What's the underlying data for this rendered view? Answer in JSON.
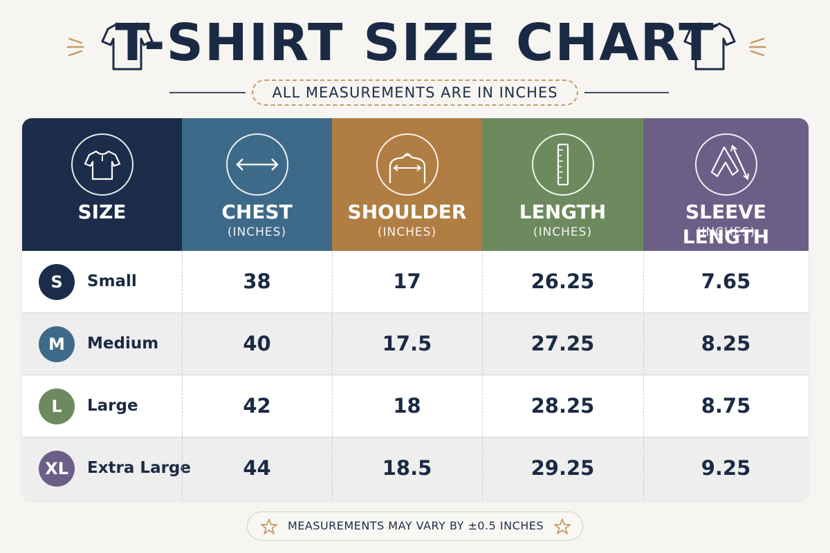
{
  "header": {
    "title": "T-SHIRT SIZE CHART",
    "subtitle": "ALL MEASUREMENTS ARE IN INCHES"
  },
  "colors": {
    "navy": "#1b2d4a",
    "chest": "#3e6a89",
    "shoulder": "#b07d43",
    "length": "#6d8a5e",
    "sleeve": "#6b5f88",
    "accent_gold": "#c99a63"
  },
  "columns": [
    {
      "label": "SIZE",
      "unit": "",
      "icon": "tshirt-icon"
    },
    {
      "label": "CHEST",
      "unit": "(INCHES)",
      "icon": "double-arrow-icon"
    },
    {
      "label": "SHOULDER",
      "unit": "(INCHES)",
      "icon": "shoulder-measure-icon"
    },
    {
      "label": "LENGTH",
      "unit": "(INCHES)",
      "icon": "ruler-icon"
    },
    {
      "label": "SLEEVE LENGTH",
      "unit": "(INCHES)",
      "icon": "sleeve-measure-icon"
    }
  ],
  "rows": [
    {
      "badge": "S",
      "name": "Small",
      "chest": "38",
      "shoulder": "17",
      "length": "26.25",
      "sleeve": "7.65"
    },
    {
      "badge": "M",
      "name": "Medium",
      "chest": "40",
      "shoulder": "17.5",
      "length": "27.25",
      "sleeve": "8.25"
    },
    {
      "badge": "L",
      "name": "Large",
      "chest": "42",
      "shoulder": "18",
      "length": "28.25",
      "sleeve": "8.75"
    },
    {
      "badge": "XL",
      "name": "Extra Large",
      "chest": "44",
      "shoulder": "18.5",
      "length": "29.25",
      "sleeve": "9.25"
    }
  ],
  "footer": {
    "note": "MEASUREMENTS MAY VARY BY ±0.5 INCHES",
    "icon": "star-icon"
  }
}
